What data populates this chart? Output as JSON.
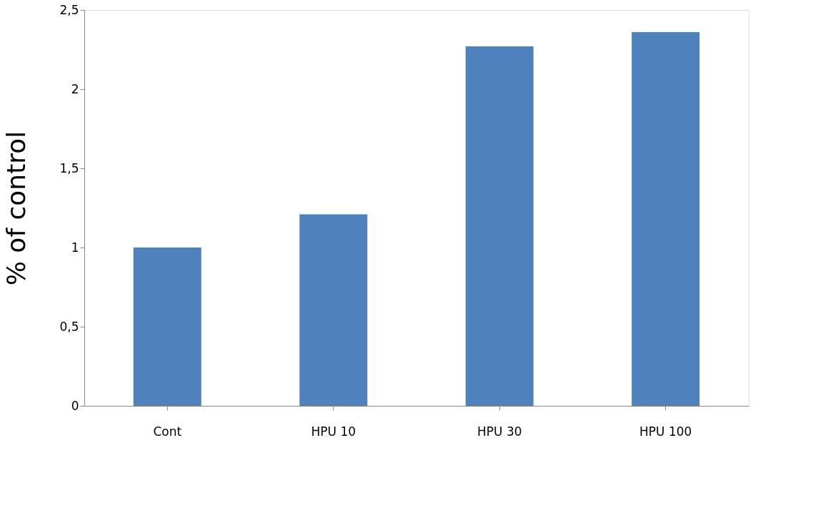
{
  "chart_data": {
    "type": "bar",
    "ylabel": "% of control",
    "categories": [
      "Cont",
      "HPU 10",
      "HPU 30",
      "HPU 100"
    ],
    "values": [
      1.0,
      1.21,
      2.27,
      2.36
    ],
    "color": "#4f81bd",
    "ylim": [
      0,
      2.5
    ],
    "yticks": [
      0,
      {
        "value": 0.5,
        "label": "0,5"
      },
      1,
      {
        "value": 1.5,
        "label": "1,5"
      },
      2,
      {
        "value": 2.5,
        "label": "2,5"
      }
    ],
    "grid": false
  }
}
